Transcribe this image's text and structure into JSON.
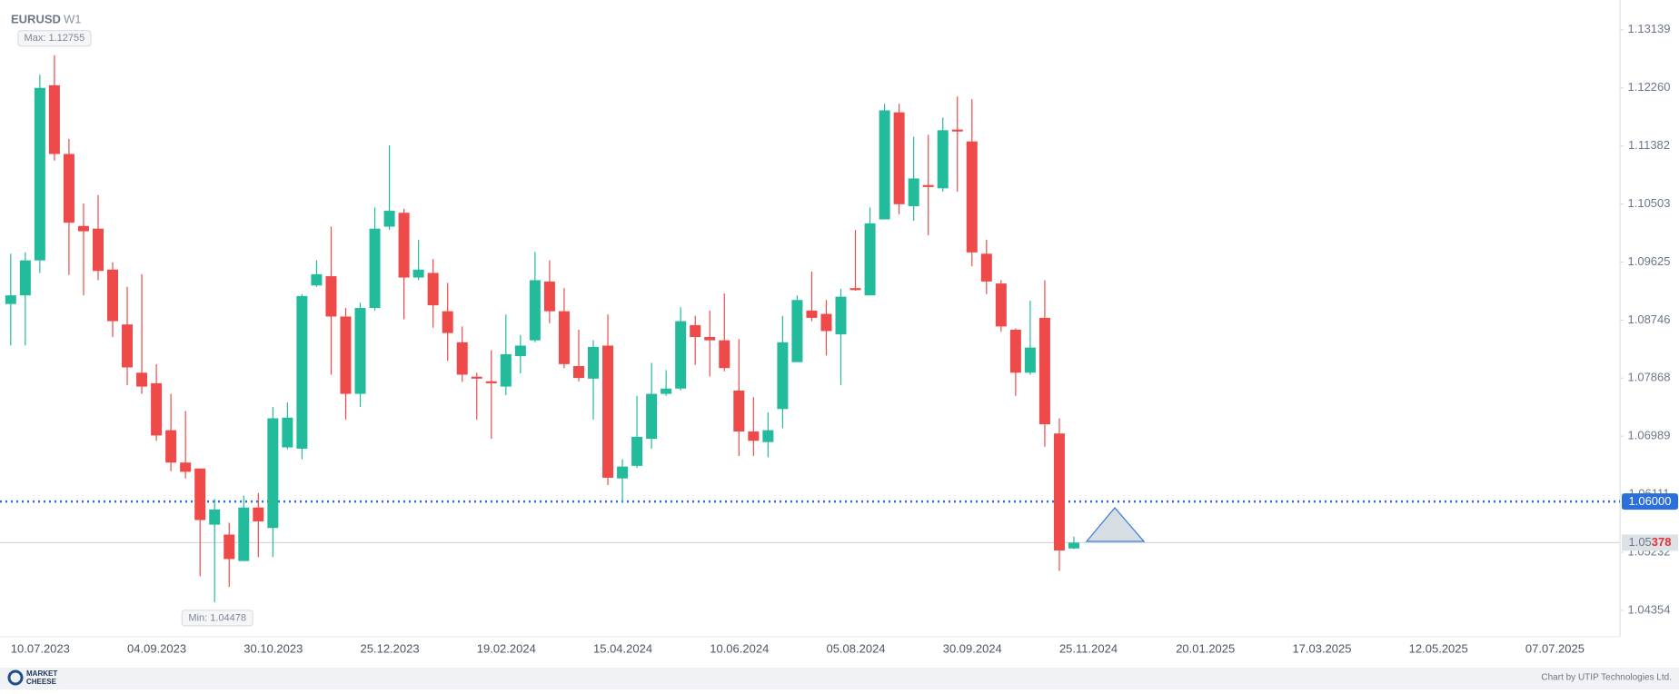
{
  "chart_data": {
    "type": "candlestick",
    "symbol": "EURUSD",
    "timeframe": "W1",
    "up_color": "#22bb9b",
    "down_color": "#ef4a4a",
    "categories": [
      "10.07.2023",
      null,
      null,
      null,
      null,
      null,
      null,
      null,
      "04.09.2023",
      null,
      null,
      null,
      null,
      null,
      null,
      null,
      "30.10.2023",
      null,
      null,
      null,
      null,
      null,
      null,
      null,
      "25.12.2023",
      null,
      null,
      null,
      null,
      null,
      null,
      null,
      "19.02.2024",
      null,
      null,
      null,
      null,
      null,
      null,
      null,
      "15.04.2024",
      null,
      null,
      null,
      null,
      null,
      null,
      null,
      "10.06.2024",
      null,
      null,
      null,
      null,
      null,
      null,
      null,
      "05.08.2024",
      null,
      null,
      null,
      null,
      null,
      null,
      null,
      "30.09.2024",
      null,
      null,
      null,
      null,
      null,
      null,
      null,
      "25.11.2024",
      null,
      null,
      null,
      null,
      null,
      null,
      null,
      "20.01.2025",
      null,
      null,
      null,
      null,
      null,
      null,
      null,
      "17.03.2025",
      null,
      null,
      null,
      null,
      null,
      null,
      null,
      "12.05.2025",
      null,
      null,
      null,
      null,
      null,
      null,
      null,
      "07.07.2025",
      null,
      null,
      null,
      null,
      null,
      null
    ],
    "open": [
      1.0899,
      1.0912,
      1.0965,
      1.123,
      1.1126,
      1.1017,
      1.1013,
      1.0951,
      1.0868,
      1.0795,
      1.0779,
      1.0708,
      1.0659,
      1.065,
      1.0565,
      1.055,
      1.051,
      1.0591,
      1.056,
      1.0682,
      1.068,
      1.0927,
      1.0941,
      1.088,
      1.0763,
      1.0893,
      1.1016,
      1.1037,
      1.0939,
      1.0946,
      1.0888,
      1.0841,
      1.0789,
      1.0782,
      1.0774,
      1.082,
      1.0844,
      1.0933,
      1.0888,
      1.0805,
      1.0786,
      1.0836,
      1.0635,
      1.0654,
      1.0695,
      1.0763,
      1.0771,
      1.0867,
      1.0849,
      1.0844,
      1.0768,
      1.0706,
      1.069,
      1.074,
      1.0811,
      1.0889,
      1.0884,
      1.0853,
      1.0923,
      1.0912,
      1.1027,
      1.1189,
      1.1047,
      1.1079,
      1.1074,
      1.1163,
      1.1145,
      1.0975,
      1.093,
      1.086,
      1.0795,
      1.0878,
      1.0703,
      1.0529,
      null,
      null,
      null,
      null,
      null,
      null,
      null,
      null,
      null,
      null,
      null,
      null,
      null,
      null,
      null,
      null,
      null,
      null,
      null,
      null,
      null,
      null,
      null,
      null,
      null,
      null,
      null,
      null,
      null,
      null,
      null,
      null,
      null,
      null,
      null,
      null,
      null
    ],
    "high": [
      1.0975,
      1.0977,
      1.1246,
      1.12755,
      1.1149,
      1.1051,
      1.1064,
      1.0962,
      1.0925,
      1.0944,
      1.0808,
      1.0763,
      1.0737,
      1.065,
      1.0604,
      1.0568,
      1.0609,
      1.0613,
      1.0743,
      1.075,
      1.0914,
      1.0965,
      1.1016,
      1.0893,
      1.0901,
      1.1045,
      1.1139,
      1.1043,
      1.0996,
      1.0967,
      1.0931,
      1.0865,
      1.0795,
      1.0829,
      1.0883,
      1.0852,
      1.0978,
      1.0965,
      1.0923,
      1.086,
      1.0844,
      1.0883,
      1.0664,
      1.076,
      1.081,
      1.0799,
      1.0894,
      1.0881,
      1.0889,
      1.0915,
      1.0846,
      1.0758,
      1.0735,
      1.0881,
      1.0912,
      1.0948,
      1.0905,
      1.0922,
      1.1011,
      1.1045,
      1.1202,
      1.1202,
      1.1152,
      1.1155,
      1.1181,
      1.1213,
      1.1209,
      1.0996,
      1.0935,
      1.0862,
      1.0904,
      1.0935,
      1.0726,
      1.0547,
      null,
      null,
      null,
      null,
      null,
      null,
      null,
      null,
      null,
      null,
      null,
      null,
      null,
      null,
      null,
      null,
      null,
      null,
      null,
      null,
      null,
      null,
      null,
      null,
      null,
      null,
      null,
      null,
      null,
      null,
      null,
      null,
      null,
      null,
      null,
      null,
      null
    ],
    "low": [
      1.0836,
      1.0836,
      1.0946,
      1.1116,
      1.0943,
      1.0912,
      1.0935,
      1.0849,
      1.0776,
      1.0763,
      1.0692,
      1.0646,
      1.0635,
      1.0487,
      1.04478,
      1.0471,
      1.051,
      1.0516,
      1.0516,
      1.0679,
      1.0664,
      1.0925,
      1.0792,
      1.0724,
      1.0743,
      1.0889,
      1.1011,
      1.0876,
      1.0935,
      1.0863,
      1.0813,
      1.0781,
      1.0724,
      1.0695,
      1.0761,
      1.0794,
      1.0841,
      1.087,
      1.0802,
      1.0782,
      1.0724,
      1.0625,
      1.0599,
      1.0651,
      1.068,
      1.076,
      1.0768,
      1.0807,
      1.0789,
      1.0797,
      1.0669,
      1.0669,
      1.0667,
      1.0711,
      1.0811,
      1.0873,
      1.0821,
      1.0776,
      1.0919,
      1.0912,
      1.1027,
      1.1035,
      1.1025,
      1.1003,
      1.1069,
      1.1069,
      1.0956,
      1.0914,
      1.0857,
      1.076,
      1.0792,
      1.0683,
      1.0495,
      1.0528,
      null,
      null,
      null,
      null,
      null,
      null,
      null,
      null,
      null,
      null,
      null,
      null,
      null,
      null,
      null,
      null,
      null,
      null,
      null,
      null,
      null,
      null,
      null,
      null,
      null,
      null,
      null,
      null,
      null,
      null,
      null,
      null,
      null,
      null,
      null,
      null,
      null
    ],
    "close": [
      1.0912,
      1.0965,
      1.1226,
      1.1126,
      1.1022,
      1.1009,
      1.0949,
      1.0873,
      1.0803,
      1.0774,
      1.07,
      1.0659,
      1.0645,
      1.0572,
      1.0588,
      1.0513,
      1.0591,
      1.057,
      1.0726,
      1.0727,
      1.0911,
      1.0944,
      1.088,
      1.0763,
      1.0893,
      1.1013,
      1.104,
      1.0939,
      1.0951,
      1.0897,
      1.0855,
      1.0792,
      1.0786,
      1.0779,
      1.0823,
      1.0836,
      1.0935,
      1.0888,
      1.0808,
      1.0787,
      1.0834,
      1.0636,
      1.0653,
      1.0698,
      1.0763,
      1.0771,
      1.0873,
      1.0849,
      1.0844,
      1.0802,
      1.0706,
      1.0692,
      1.0708,
      1.0841,
      1.0905,
      1.0878,
      1.0858,
      1.091,
      1.092,
      1.1021,
      1.1192,
      1.105,
      1.1089,
      1.1076,
      1.1162,
      1.116,
      1.0977,
      1.0933,
      1.0865,
      1.0795,
      1.0833,
      1.0717,
      1.0526,
      1.05378,
      null,
      null,
      null,
      null,
      null,
      null,
      null,
      null,
      null,
      null,
      null,
      null,
      null,
      null,
      null,
      null,
      null,
      null,
      null,
      null,
      null,
      null,
      null,
      null,
      null,
      null,
      null,
      null,
      null,
      null,
      null,
      null,
      null,
      null,
      null,
      null,
      null
    ],
    "ylim": [
      1.0405,
      1.1359
    ],
    "yticks": [
      1.13139,
      {
        "value": 1.1226,
        "label": "1.12260"
      },
      1.11382,
      1.10503,
      1.09625,
      1.08746,
      1.07868,
      1.06989,
      1.06111,
      1.05232,
      1.04354
    ],
    "max_label": "Max: 1.12755",
    "min_label": "Min: 1.04478",
    "level_line": {
      "value": 1.06,
      "label": "1.06000",
      "color": "#2a6fdb"
    },
    "current_price": {
      "value": 1.05378,
      "label_parts": [
        "1.05",
        "378"
      ]
    },
    "brand": [
      "MARKET",
      "CHEESE"
    ],
    "credit": "Chart by UTIP Technologies Ltd."
  }
}
